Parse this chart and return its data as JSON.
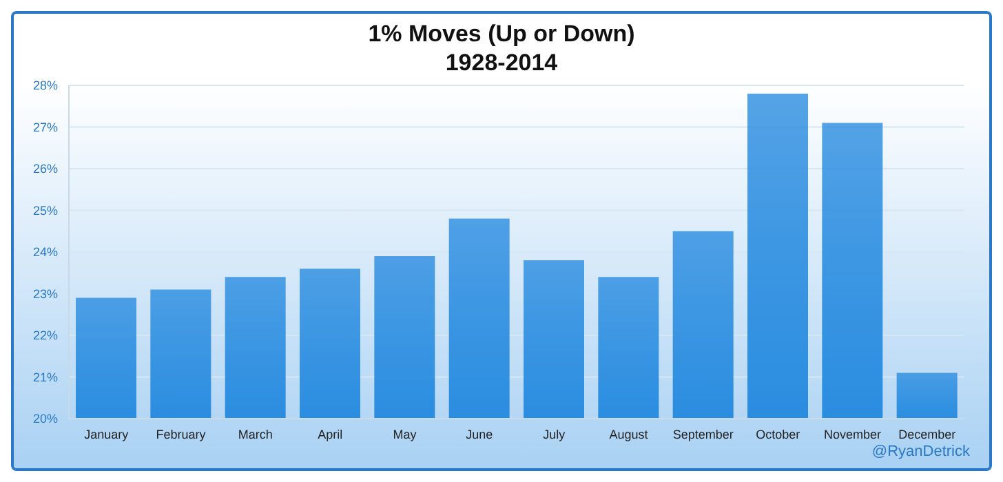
{
  "chart_data": {
    "type": "bar",
    "title": "1% Moves (Up or Down)",
    "subtitle": "1928-2014",
    "categories": [
      "January",
      "February",
      "March",
      "April",
      "May",
      "June",
      "July",
      "August",
      "September",
      "October",
      "November",
      "December"
    ],
    "values": [
      22.9,
      23.1,
      23.4,
      23.6,
      23.9,
      24.8,
      23.8,
      23.4,
      24.5,
      27.8,
      27.1,
      21.1
    ],
    "color": "#2b8de0",
    "ylim": [
      20,
      28
    ],
    "yticks": [
      {
        "value": 20,
        "label": "20%"
      },
      {
        "value": 21,
        "label": "21%"
      },
      {
        "value": 22,
        "label": "22%"
      },
      {
        "value": 23,
        "label": "23%"
      },
      {
        "value": 24,
        "label": "24%"
      },
      {
        "value": 25,
        "label": "25%"
      },
      {
        "value": 26,
        "label": "26%"
      },
      {
        "value": 27,
        "label": "27%"
      },
      {
        "value": 28,
        "label": "28%"
      }
    ],
    "grid": "y",
    "annotations": [
      "@RyanDetrick"
    ]
  }
}
